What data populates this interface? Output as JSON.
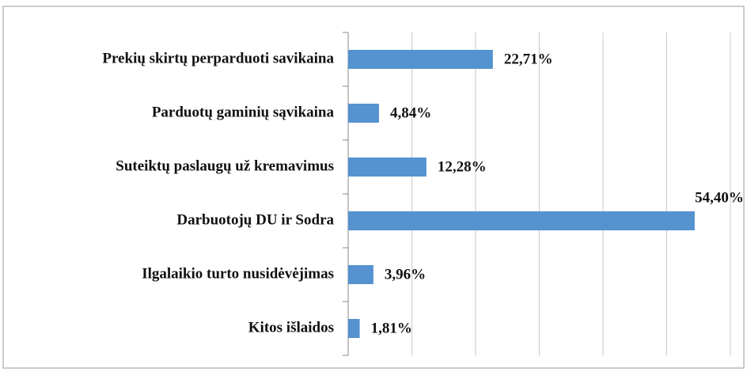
{
  "chart_data": {
    "type": "barh",
    "categories": [
      "Prekių skirtų perparduoti savikaina",
      "Parduotų gaminių sąvikaina",
      "Suteiktų paslaugų už kremavimus",
      "Darbuotojų DU ir Sodra",
      "Ilgalaikio turto nusidėvėjimas",
      "Kitos išlaidos"
    ],
    "values": [
      22.71,
      4.84,
      12.28,
      54.4,
      3.96,
      1.81
    ],
    "value_labels": [
      "22,71%",
      "4,84%",
      "12,28%",
      "54,40%",
      "3,96%",
      "1,81%"
    ],
    "color": "#5592d0",
    "xlim": [
      0,
      60
    ],
    "xticks": [
      0,
      10,
      20,
      30,
      40,
      50,
      60
    ],
    "grid": true
  }
}
